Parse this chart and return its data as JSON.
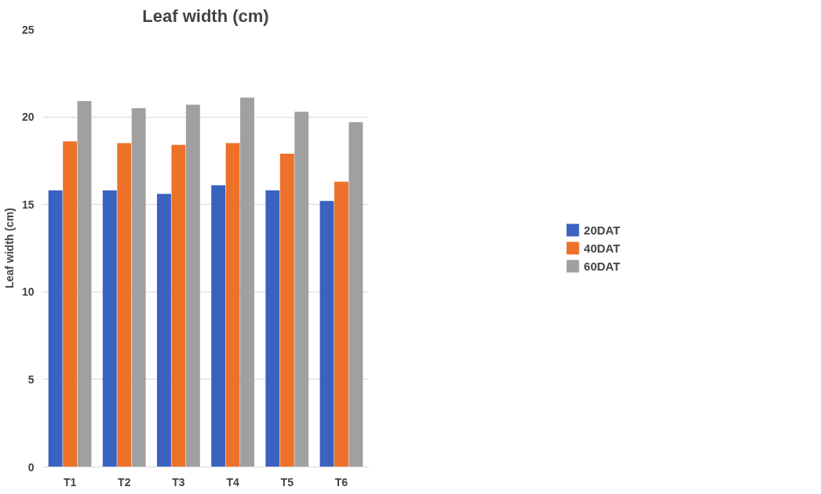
{
  "chart_data": {
    "type": "bar",
    "title": "Leaf width (cm)",
    "ylabel": "Leaf width (cm)",
    "categories": [
      "T1",
      "T2",
      "T3",
      "T4",
      "T5",
      "T6"
    ],
    "series": [
      {
        "name": "20DAT",
        "color": "#3a62c0",
        "values": [
          15.8,
          15.8,
          15.6,
          16.1,
          15.8,
          15.2
        ]
      },
      {
        "name": "40DAT",
        "color": "#ed7128",
        "values": [
          18.6,
          18.5,
          18.4,
          18.5,
          17.9,
          16.3
        ]
      },
      {
        "name": "60DAT",
        "color": "#a0a0a0",
        "values": [
          20.9,
          20.5,
          20.7,
          21.1,
          20.3,
          19.7
        ]
      }
    ],
    "ylim": [
      0,
      25
    ],
    "yticks": [
      0,
      5,
      10,
      15,
      20,
      25
    ],
    "grid": "y",
    "legend": "right"
  }
}
